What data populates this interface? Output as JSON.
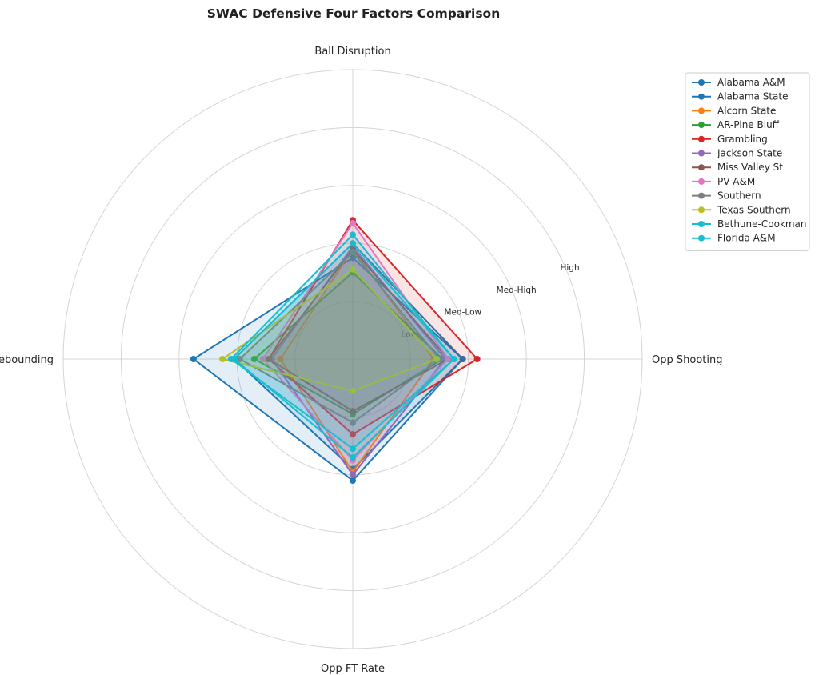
{
  "chart_data": {
    "type": "radar",
    "title": "SWAC Defensive Four Factors Comparison",
    "axes": [
      "Ball Disruption",
      "Opp Shooting",
      "Opp FT Rate",
      "Def Rebounding"
    ],
    "rlim": [
      0,
      5
    ],
    "ring_ticks": [
      {
        "value": 1,
        "label": "Low"
      },
      {
        "value": 2,
        "label": "Med-Low"
      },
      {
        "value": 3,
        "label": "Med-High"
      },
      {
        "value": 4,
        "label": "High"
      },
      {
        "value": 5,
        "label": ""
      }
    ],
    "grid": true,
    "legend_position": "top-right",
    "series": [
      {
        "name": "Alabama A&M",
        "color": "#1f77b4",
        "values": [
          1.75,
          1.9,
          2.1,
          2.75
        ]
      },
      {
        "name": "Alabama State",
        "color": "#1f77b4",
        "values": [
          2.0,
          1.9,
          1.9,
          2.05
        ]
      },
      {
        "name": "Alcorn State",
        "color": "#ff7f0e",
        "values": [
          1.9,
          1.4,
          1.95,
          1.25
        ]
      },
      {
        "name": "AR-Pine Bluff",
        "color": "#2ca02c",
        "values": [
          1.5,
          1.55,
          0.95,
          1.7
        ]
      },
      {
        "name": "Grambling",
        "color": "#d62728",
        "values": [
          2.4,
          2.15,
          1.3,
          1.45
        ]
      },
      {
        "name": "Jackson State",
        "color": "#9467bd",
        "values": [
          1.95,
          1.6,
          2.0,
          1.4
        ]
      },
      {
        "name": "Miss Valley St",
        "color": "#8c564b",
        "values": [
          1.9,
          1.65,
          0.9,
          1.45
        ]
      },
      {
        "name": "PV A&M",
        "color": "#e377c2",
        "values": [
          2.35,
          1.65,
          1.75,
          1.55
        ]
      },
      {
        "name": "Southern",
        "color": "#7f7f7f",
        "values": [
          1.85,
          1.5,
          1.1,
          1.95
        ]
      },
      {
        "name": "Texas Southern",
        "color": "#bcbd22",
        "values": [
          1.55,
          1.45,
          0.55,
          2.25
        ]
      },
      {
        "name": "Bethune-Cookman",
        "color": "#17becf",
        "values": [
          2.0,
          1.75,
          1.7,
          2.05
        ]
      },
      {
        "name": "Florida A&M",
        "color": "#17becf",
        "values": [
          2.15,
          1.75,
          1.55,
          2.1
        ]
      }
    ]
  }
}
